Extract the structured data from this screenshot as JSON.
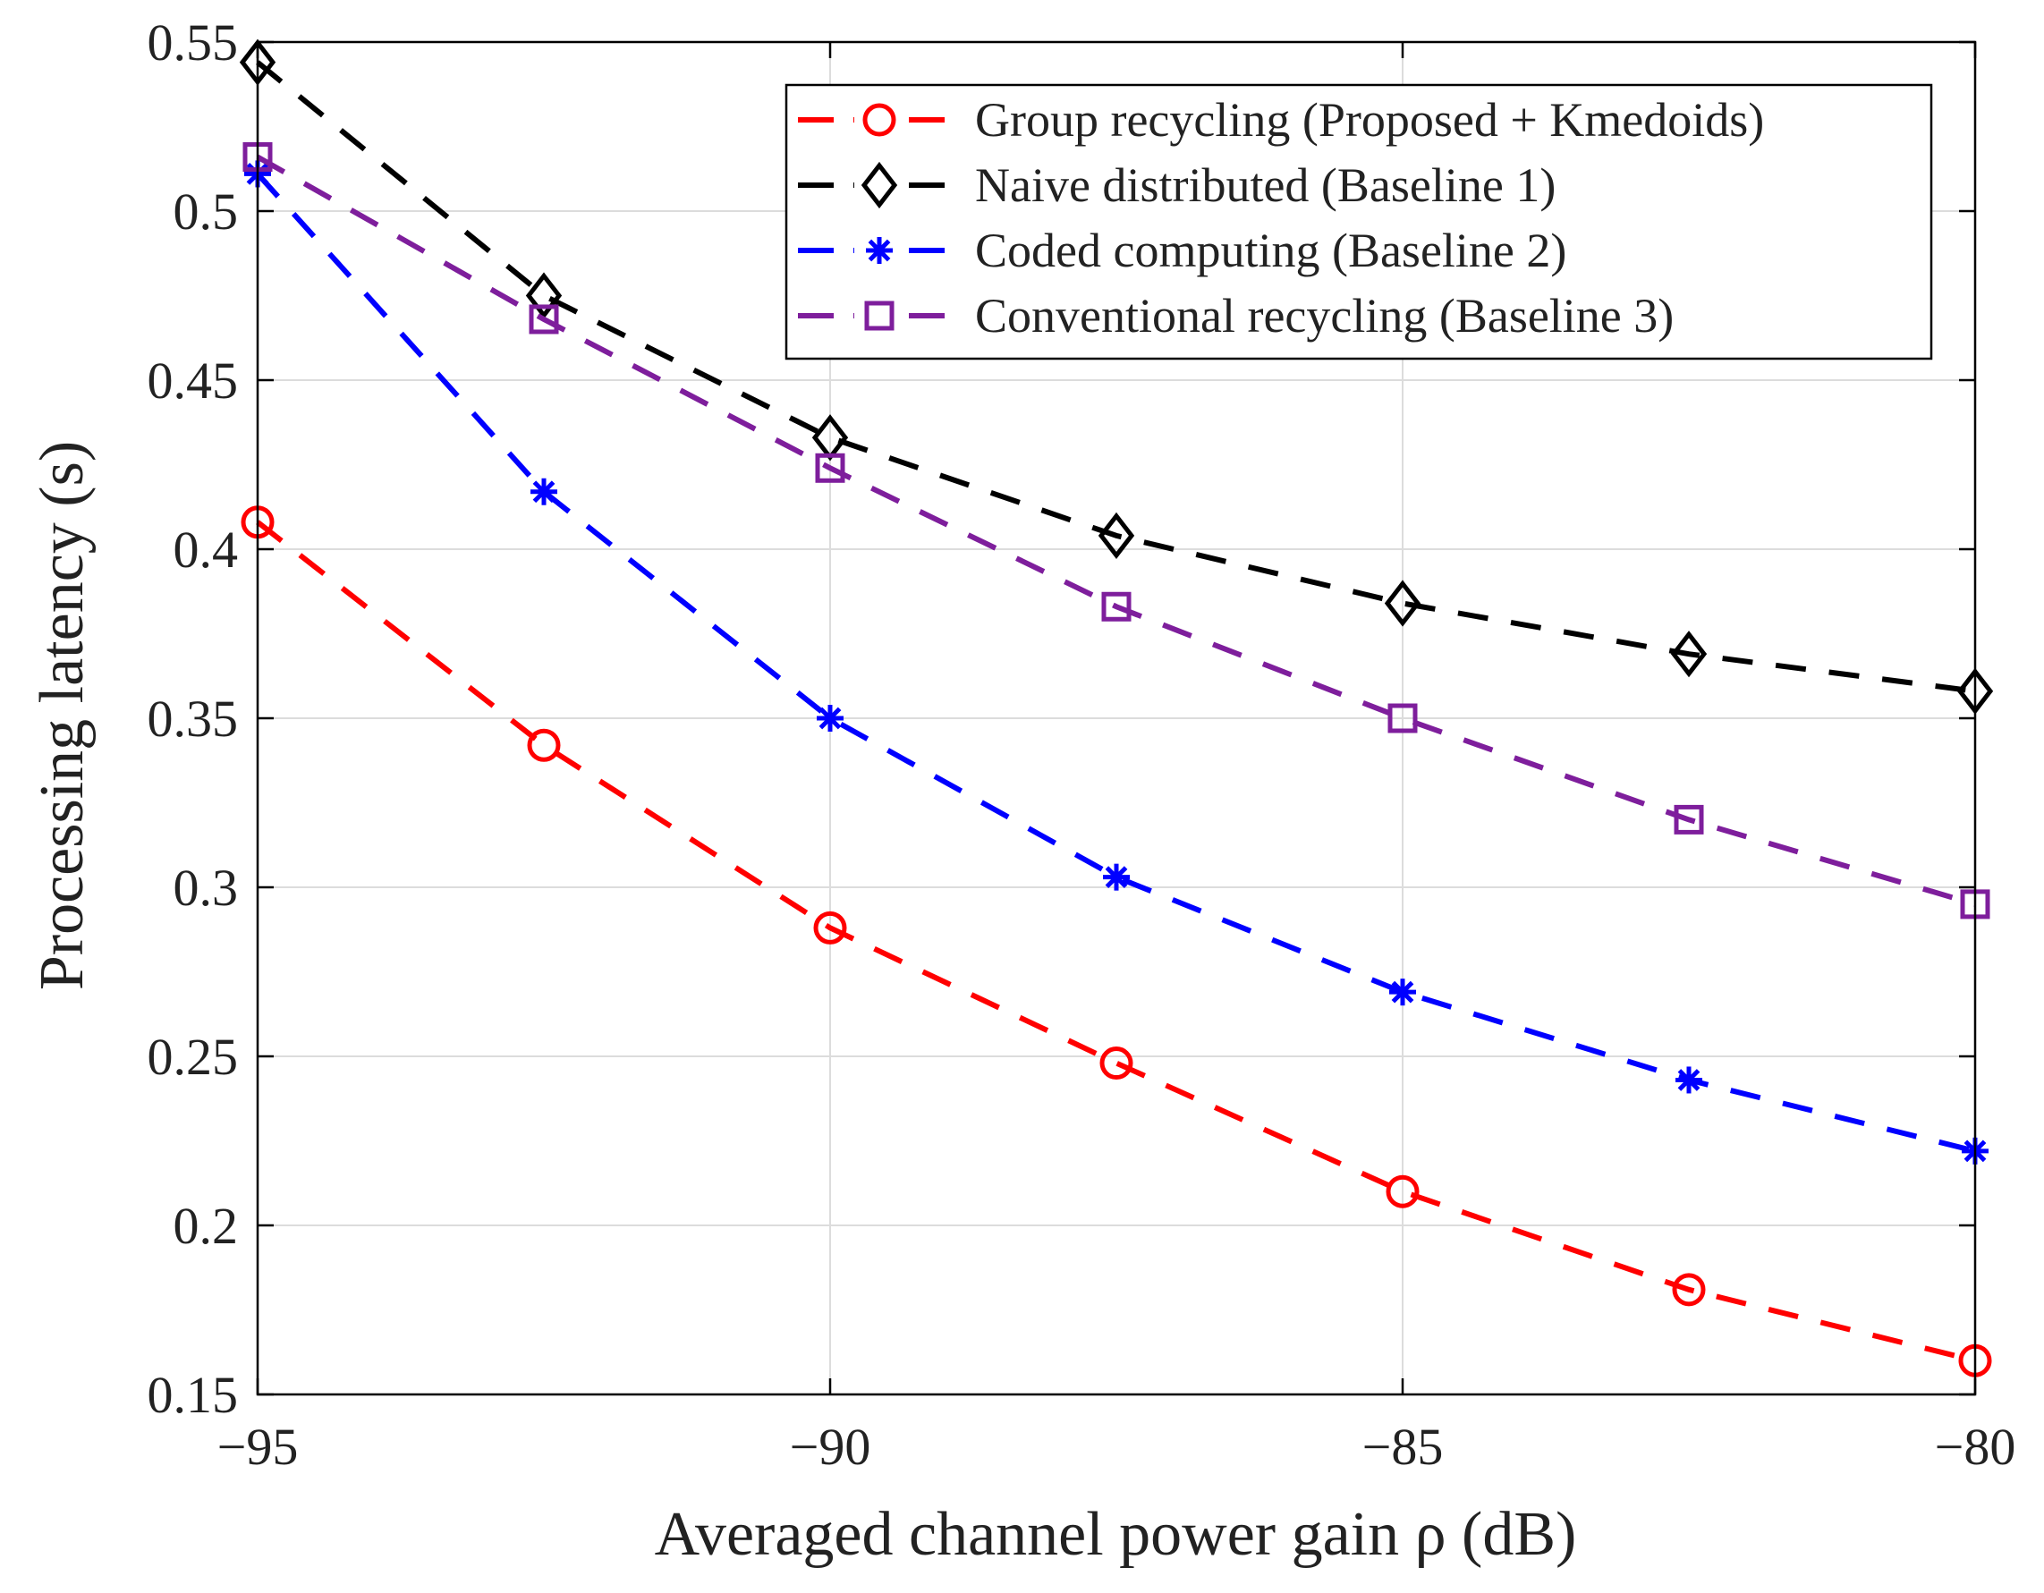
{
  "chart_data": {
    "type": "line",
    "title": "",
    "xlabel": "Averaged channel power gain ρ (dB)",
    "ylabel": "Processing latency (s)",
    "xlim": [
      -95,
      -80
    ],
    "ylim": [
      0.15,
      0.55
    ],
    "xticks": [
      -95,
      -90,
      -85,
      -80
    ],
    "xtick_labels": [
      "−95",
      "−90",
      "−85",
      "−80"
    ],
    "yticks": [
      0.15,
      0.2,
      0.25,
      0.3,
      0.35,
      0.4,
      0.45,
      0.5,
      0.55
    ],
    "ytick_labels": [
      "0.15",
      "0.2",
      "0.25",
      "0.3",
      "0.35",
      "0.4",
      "0.45",
      "0.5",
      "0.55"
    ],
    "grid": true,
    "legend_position": "top-right",
    "x": [
      -95,
      -92.5,
      -90,
      -87.5,
      -85,
      -82.5,
      -80
    ],
    "series": [
      {
        "name": "Group recycling (Proposed + Kmedoids)",
        "color": "#ff0000",
        "marker": "circle",
        "values": [
          0.408,
          0.342,
          0.288,
          0.248,
          0.21,
          0.181,
          0.16
        ]
      },
      {
        "name": "Naive distributed (Baseline 1)",
        "color": "#000000",
        "marker": "diamond",
        "values": [
          0.544,
          0.475,
          0.433,
          0.404,
          0.384,
          0.369,
          0.358
        ]
      },
      {
        "name": "Coded computing (Baseline 2)",
        "color": "#0000ff",
        "marker": "asterisk",
        "values": [
          0.511,
          0.417,
          0.35,
          0.303,
          0.269,
          0.243,
          0.222
        ]
      },
      {
        "name": "Conventional recycling (Baseline 3)",
        "color": "#7e1e9c",
        "marker": "square",
        "values": [
          0.516,
          0.468,
          0.424,
          0.383,
          0.35,
          0.32,
          0.295
        ]
      }
    ]
  }
}
